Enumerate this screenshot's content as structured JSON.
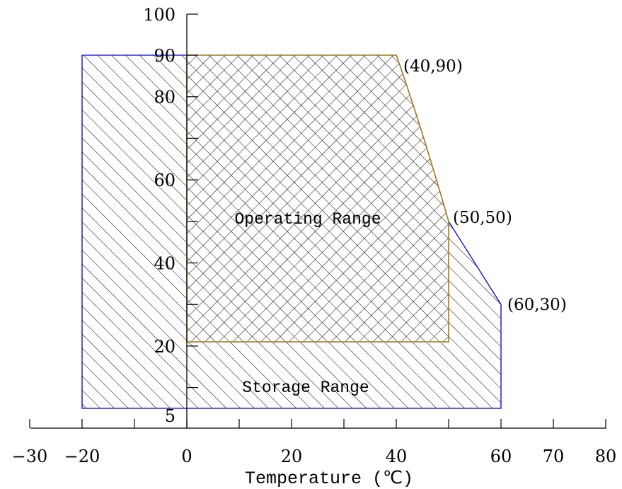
{
  "chart_data": {
    "type": "area",
    "title": "",
    "xlabel": "Temperature (℃)",
    "ylabel": "",
    "xlim": [
      -30,
      80
    ],
    "ylim": [
      5,
      100
    ],
    "x_ticks": [
      -30,
      -20,
      -10,
      0,
      10,
      20,
      30,
      40,
      50,
      60,
      70,
      80
    ],
    "x_tick_labels": [
      "-30",
      "-20",
      "",
      "0",
      "",
      "20",
      "",
      "40",
      "",
      "60",
      "70",
      "80"
    ],
    "y_ticks": [
      5,
      10,
      20,
      30,
      40,
      50,
      60,
      70,
      80,
      90,
      100
    ],
    "y_tick_labels": [
      "5",
      "",
      "20",
      "",
      "40",
      "",
      "60",
      "",
      "80",
      "90",
      "100"
    ],
    "grid": false,
    "series": [
      {
        "name": "Storage Range",
        "color": "#0000cc",
        "hatch": "diagonal",
        "points": [
          [
            -20,
            5
          ],
          [
            -20,
            90
          ],
          [
            40,
            90
          ],
          [
            50,
            50
          ],
          [
            60,
            30
          ],
          [
            60,
            5
          ]
        ]
      },
      {
        "name": "Operating Range",
        "color": "#a07c1c",
        "hatch": "cross",
        "points": [
          [
            0,
            21
          ],
          [
            0,
            90
          ],
          [
            40,
            90
          ],
          [
            50,
            50
          ],
          [
            50,
            21
          ]
        ]
      }
    ],
    "annotations": [
      "(40,90)",
      "(50,50)",
      "(60,30)"
    ]
  }
}
